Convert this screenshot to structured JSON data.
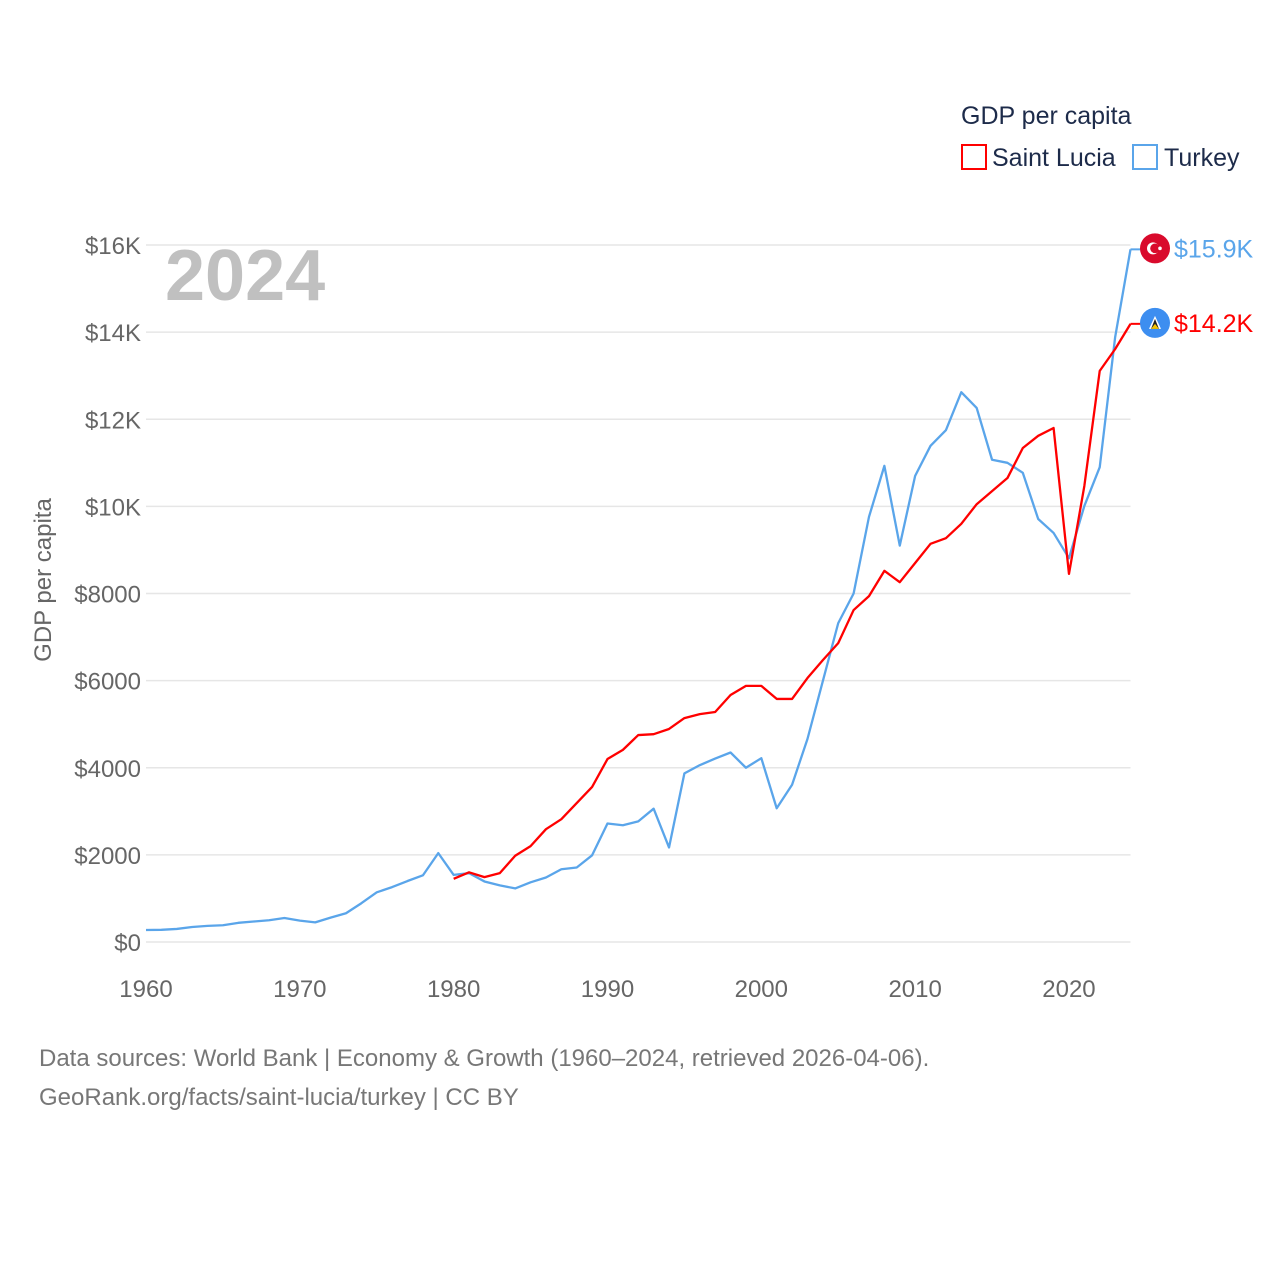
{
  "chart_data": {
    "type": "line",
    "title": "GDP per capita",
    "year_label": "2024",
    "xlabel": "",
    "ylabel": "GDP per capita",
    "xlim": [
      1960,
      2024
    ],
    "ylim": [
      0,
      16000
    ],
    "x_ticks": [
      1960,
      1970,
      1980,
      1990,
      2000,
      2010,
      2020
    ],
    "x_tick_labels": [
      "1960",
      "1970",
      "1980",
      "1990",
      "2000",
      "2010",
      "2020"
    ],
    "y_ticks": [
      0,
      2000,
      4000,
      6000,
      8000,
      10000,
      12000,
      14000,
      16000
    ],
    "y_tick_labels": [
      "$0",
      "$2000",
      "$4000",
      "$6000",
      "$8000",
      "$10K",
      "$12K",
      "$14K",
      "$16K"
    ],
    "grid": true,
    "legend_placement": "top-right",
    "series": [
      {
        "name": "Saint Lucia",
        "color": "#ff0000",
        "flag": "saint-lucia-flag",
        "end_label": "$14.2K",
        "start_year": 1980,
        "values": [
          1450,
          1600,
          1490,
          1580,
          1980,
          2200,
          2590,
          2820,
          3190,
          3560,
          4200,
          4410,
          4750,
          4770,
          4890,
          5140,
          5230,
          5280,
          5670,
          5880,
          5880,
          5580,
          5580,
          6060,
          6470,
          6860,
          7620,
          7940,
          8520,
          8260,
          8700,
          9140,
          9270,
          9600,
          10050,
          10350,
          10650,
          11340,
          11620,
          11800,
          8450,
          10470,
          13110,
          13610,
          14190
        ]
      },
      {
        "name": "Turkey",
        "color": "#5aa5ea",
        "flag": "turkey-flag",
        "end_label": "$15.9K",
        "start_year": 1960,
        "values": [
          275,
          280,
          300,
          345,
          370,
          385,
          440,
          470,
          500,
          550,
          490,
          450,
          560,
          660,
          890,
          1140,
          1260,
          1400,
          1530,
          2040,
          1540,
          1580,
          1390,
          1300,
          1230,
          1370,
          1480,
          1670,
          1710,
          1990,
          2720,
          2680,
          2770,
          3060,
          2170,
          3870,
          4060,
          4210,
          4350,
          4000,
          4220,
          3070,
          3610,
          4660,
          5990,
          7320,
          8000,
          9760,
          10930,
          9100,
          10700,
          11390,
          11750,
          12620,
          12260,
          11070,
          11000,
          10770,
          9710,
          9390,
          8810,
          10010,
          10900,
          13880,
          15900
        ]
      }
    ]
  },
  "footer": {
    "line1": "Data sources: World Bank | Economy & Growth (1960–2024, retrieved 2026-04-06).",
    "line2": "GeoRank.org/facts/saint-lucia/turkey | CC BY"
  }
}
